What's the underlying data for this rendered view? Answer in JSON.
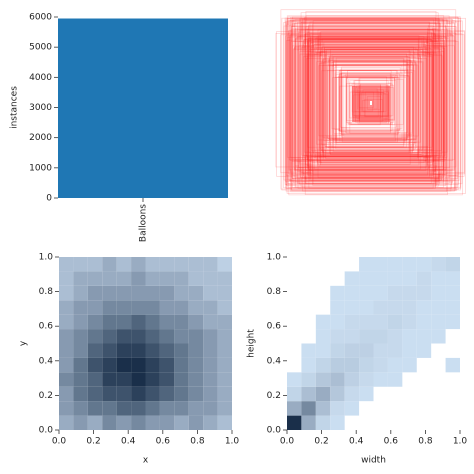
{
  "chart_data": [
    {
      "type": "bar",
      "categories": [
        "Balloons"
      ],
      "values": [
        5950
      ],
      "color": "#1f77b4",
      "ylabel": "instances",
      "ylim": [
        0,
        6000
      ],
      "yticks": [
        0,
        1000,
        2000,
        3000,
        4000,
        5000,
        6000
      ]
    },
    {
      "type": "histogram2d",
      "xlabel": "x",
      "ylabel": "y",
      "color_low": "#cfe2f5",
      "color_high": "#1a2f4a",
      "xlim": [
        0,
        1
      ],
      "ylim": [
        0,
        1
      ],
      "xticks": [
        {
          "value": 0,
          "label": "0.0"
        },
        0.2,
        0.4,
        0.6,
        0.8,
        {
          "value": 1,
          "label": "1.0"
        }
      ],
      "yticks": [
        {
          "value": 0,
          "label": "0.0"
        },
        0.2,
        0.4,
        0.6,
        0.8,
        {
          "value": 1,
          "label": "1.0"
        }
      ],
      "xbins": [
        0,
        0.0833,
        0.1667,
        0.25,
        0.3333,
        0.4167,
        0.5,
        0.5833,
        0.6667,
        0.75,
        0.8333,
        0.9167,
        1
      ],
      "ybins": [
        0,
        0.0833,
        0.1667,
        0.25,
        0.3333,
        0.4167,
        0.5,
        0.5833,
        0.6667,
        0.75,
        0.8333,
        0.9167,
        1
      ],
      "counts": [
        [
          3,
          4,
          3,
          5,
          4,
          5,
          4,
          4,
          3,
          4,
          3,
          2
        ],
        [
          4,
          5,
          6,
          6,
          7,
          7,
          6,
          5,
          5,
          4,
          4,
          3
        ],
        [
          4,
          6,
          7,
          8,
          8,
          9,
          8,
          7,
          6,
          5,
          4,
          3
        ],
        [
          5,
          6,
          7,
          9,
          9,
          10,
          9,
          8,
          6,
          5,
          4,
          3
        ],
        [
          4,
          6,
          8,
          9,
          10,
          10,
          9,
          8,
          6,
          5,
          4,
          3
        ],
        [
          4,
          5,
          7,
          8,
          9,
          9,
          8,
          7,
          6,
          5,
          4,
          3
        ],
        [
          4,
          5,
          6,
          7,
          8,
          8,
          7,
          6,
          5,
          5,
          4,
          3
        ],
        [
          3,
          4,
          5,
          6,
          6,
          7,
          6,
          5,
          5,
          4,
          3,
          3
        ],
        [
          3,
          4,
          4,
          5,
          5,
          5,
          5,
          4,
          4,
          3,
          3,
          2
        ],
        [
          2,
          3,
          4,
          4,
          4,
          4,
          4,
          4,
          3,
          3,
          2,
          2
        ],
        [
          2,
          3,
          3,
          3,
          3,
          4,
          3,
          3,
          3,
          2,
          2,
          2
        ],
        [
          2,
          2,
          2,
          3,
          2,
          3,
          2,
          2,
          2,
          2,
          2,
          1
        ]
      ]
    },
    {
      "type": "histogram2d",
      "xlabel": "width",
      "ylabel": "height",
      "color_low": "#cfe2f5",
      "color_high": "#1a2f4a",
      "xlim": [
        0,
        1
      ],
      "ylim": [
        0,
        1
      ],
      "xticks": [
        {
          "value": 0,
          "label": "0.0"
        },
        0.2,
        0.4,
        0.6,
        0.8,
        {
          "value": 1,
          "label": "1.0"
        }
      ],
      "yticks": [
        {
          "value": 0,
          "label": "0.0"
        },
        0.2,
        0.4,
        0.6,
        0.8,
        {
          "value": 1,
          "label": "1.0"
        }
      ],
      "xbins": [
        0,
        0.0833,
        0.1667,
        0.25,
        0.3333,
        0.4167,
        0.5,
        0.5833,
        0.6667,
        0.75,
        0.8333,
        0.9167,
        1
      ],
      "ybins": [
        0,
        0.0833,
        0.1667,
        0.25,
        0.3333,
        0.4167,
        0.5,
        0.5833,
        0.6667,
        0.75,
        0.8333,
        0.9167,
        1
      ],
      "counts": [
        [
          40,
          12,
          3,
          1,
          0,
          0,
          0,
          0,
          0,
          0,
          0,
          0
        ],
        [
          12,
          20,
          8,
          2,
          1,
          0,
          0,
          0,
          0,
          0,
          0,
          0
        ],
        [
          3,
          8,
          12,
          6,
          2,
          1,
          0,
          0,
          0,
          0,
          0,
          0
        ],
        [
          1,
          3,
          6,
          8,
          4,
          2,
          1,
          1,
          0,
          0,
          0,
          0
        ],
        [
          0,
          1,
          3,
          5,
          5,
          3,
          2,
          1,
          1,
          0,
          0,
          1
        ],
        [
          0,
          1,
          1,
          3,
          4,
          4,
          2,
          2,
          1,
          1,
          0,
          0
        ],
        [
          0,
          0,
          1,
          2,
          2,
          3,
          3,
          2,
          1,
          1,
          1,
          0
        ],
        [
          0,
          0,
          1,
          1,
          2,
          2,
          2,
          3,
          2,
          1,
          1,
          1
        ],
        [
          0,
          0,
          0,
          1,
          1,
          1,
          2,
          2,
          2,
          1,
          1,
          1
        ],
        [
          0,
          0,
          0,
          1,
          1,
          1,
          1,
          2,
          2,
          2,
          1,
          1
        ],
        [
          0,
          0,
          0,
          0,
          1,
          1,
          1,
          1,
          1,
          2,
          1,
          1
        ],
        [
          0,
          0,
          0,
          0,
          0,
          1,
          1,
          1,
          1,
          1,
          2,
          3
        ]
      ]
    }
  ]
}
